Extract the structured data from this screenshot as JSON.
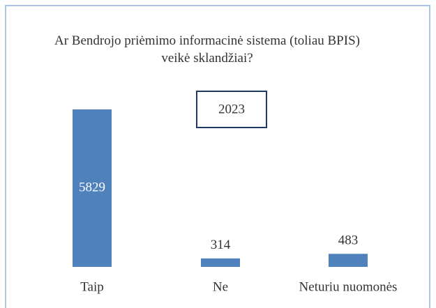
{
  "chart_data": {
    "type": "bar",
    "title": "Ar Bendrojo priėmimo informacinė sistema (toliau BPIS) veikė sklandžiai?",
    "annotation": "2023",
    "categories": [
      "Taip",
      "Ne",
      "Neturiu nuomonės"
    ],
    "values": [
      5829,
      314,
      483
    ],
    "color": "#4f81bd"
  }
}
